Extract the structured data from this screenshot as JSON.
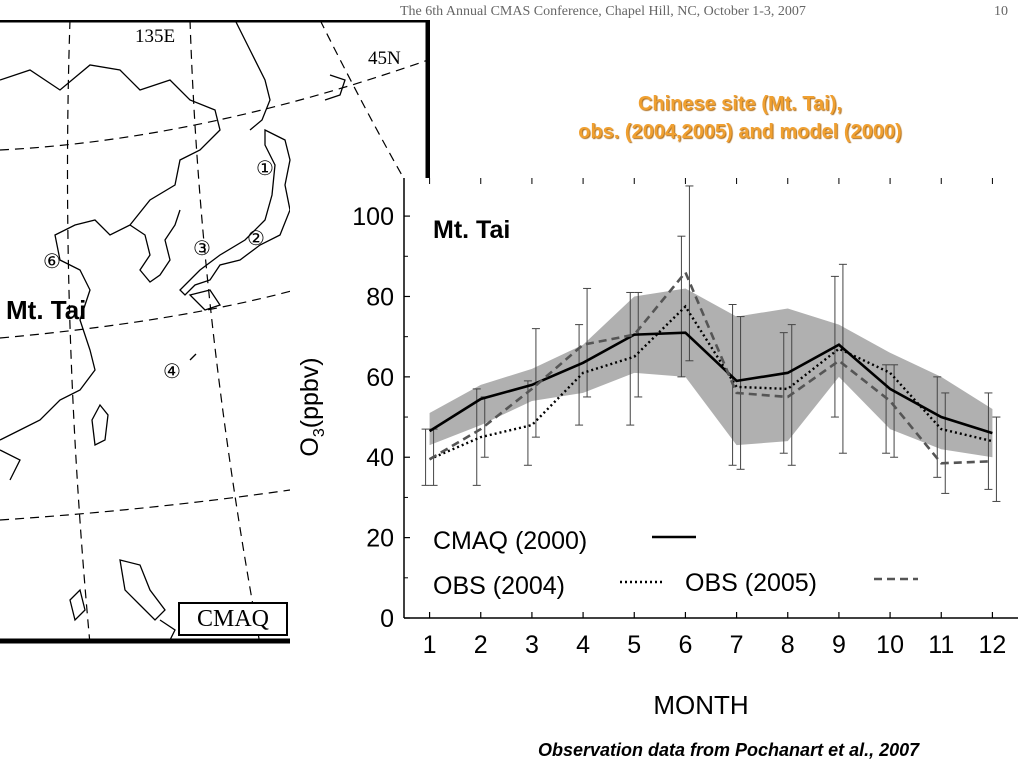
{
  "header": {
    "conference": "The 6th Annual CMAS Conference, Chapel Hill, NC, October 1-3, 2007",
    "page_number": "10"
  },
  "title": {
    "line1": "Chinese site (Mt. Tai),",
    "line2": "obs. (2004,2005) and model (2000)"
  },
  "map": {
    "lon_label": "135E",
    "lat_label": "45N",
    "site_label": "Mt. Tai",
    "model_label": "CMAQ",
    "markers": [
      "①",
      "②",
      "③",
      "④",
      "⑥"
    ]
  },
  "footer": {
    "note": "Observation data from Pochanart et al., 2007"
  },
  "chart_data": {
    "type": "line",
    "title": "Mt. Tai",
    "xlabel": "MONTH",
    "ylabel_main": "O",
    "ylabel_sub": "3",
    "ylabel_rest": "(ppbv)",
    "xlim": [
      0.5,
      12.5
    ],
    "ylim": [
      0,
      105
    ],
    "x": [
      1,
      2,
      3,
      4,
      5,
      6,
      7,
      8,
      9,
      10,
      11,
      12
    ],
    "x_ticks": [
      "1",
      "2",
      "3",
      "4",
      "5",
      "6",
      "7",
      "8",
      "9",
      "10",
      "11",
      "12"
    ],
    "y_ticks": [
      "0",
      "20",
      "40",
      "60",
      "80",
      "100"
    ],
    "y_tick_values": [
      0,
      20,
      40,
      60,
      80,
      100
    ],
    "model_range": {
      "upper": [
        51,
        58,
        62,
        68,
        80,
        82,
        75,
        77,
        73,
        66,
        60,
        52
      ],
      "lower": [
        43,
        48,
        54,
        56,
        61,
        60,
        43,
        44,
        60,
        47,
        42,
        40
      ]
    },
    "series": [
      {
        "name": "CMAQ (2000)",
        "style": "solid",
        "color": "#000000",
        "values": [
          46.5,
          54.5,
          58,
          63.5,
          70.5,
          71,
          59,
          61,
          68,
          57,
          50,
          46
        ],
        "err_low": [
          null,
          null,
          null,
          null,
          null,
          null,
          null,
          null,
          null,
          null,
          null,
          null
        ],
        "err_high": [
          null,
          null,
          null,
          null,
          null,
          null,
          null,
          null,
          null,
          null,
          null,
          null
        ]
      },
      {
        "name": "OBS (2004)",
        "style": "dotted",
        "color": "#000000",
        "values": [
          39.5,
          45,
          48,
          61,
          65,
          77.5,
          57.5,
          57,
          67,
          61,
          47,
          44
        ],
        "err_low": [
          33,
          33,
          38,
          48,
          48,
          60,
          38,
          41,
          50,
          41,
          35,
          32
        ],
        "err_high": [
          47,
          57,
          59,
          73,
          81,
          95,
          78,
          71,
          85,
          63,
          60,
          56
        ]
      },
      {
        "name": "OBS (2005)",
        "style": "dashed",
        "color": "#555555",
        "values": [
          39.5,
          47,
          57,
          68,
          70.5,
          86,
          56,
          55,
          64,
          54,
          38.5,
          39
        ],
        "err_low": [
          33,
          40,
          45,
          55,
          55,
          64,
          37,
          38,
          41,
          40,
          31,
          29
        ],
        "err_high": [
          47,
          55,
          72,
          82,
          81,
          107.5,
          75,
          73,
          88,
          63,
          56,
          50
        ]
      }
    ],
    "legend_placement": "bottom-left",
    "colors": {
      "band": "#b0b0b0",
      "axis": "#000000"
    }
  }
}
